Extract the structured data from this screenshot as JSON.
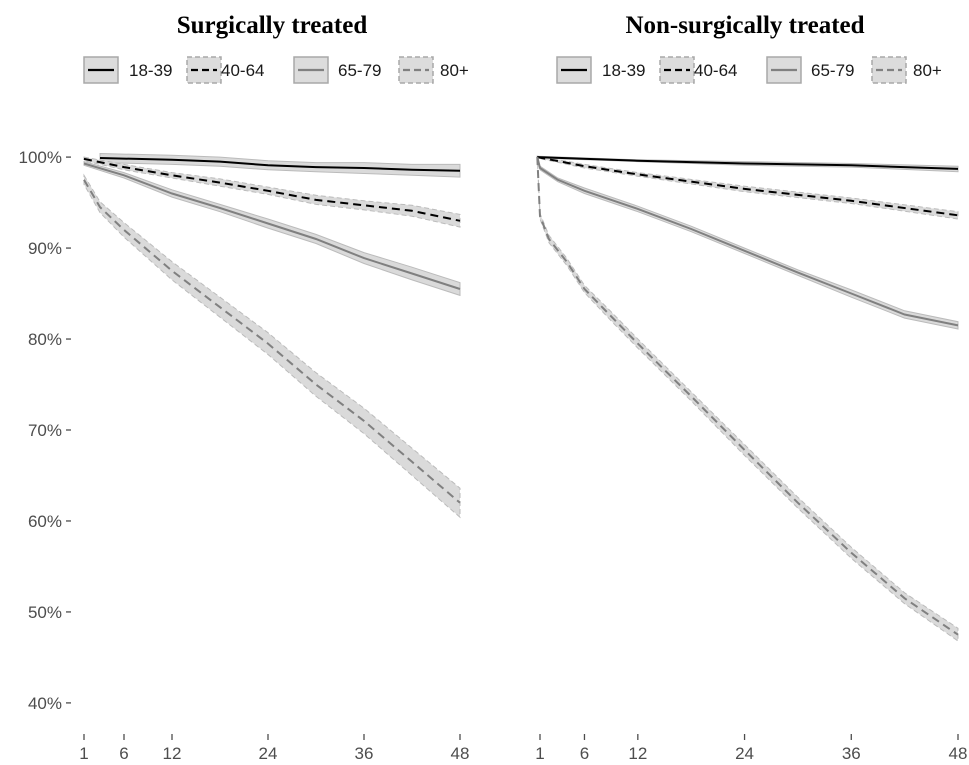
{
  "chart_data": [
    {
      "type": "line",
      "title": "Surgically treated",
      "xlabel": "",
      "ylabel": "",
      "x_ticks": [
        1,
        6,
        12,
        24,
        36,
        48
      ],
      "y_ticks": [
        "40%",
        "50%",
        "60%",
        "70%",
        "80%",
        "90%",
        "100%"
      ],
      "xlim": [
        1,
        48
      ],
      "ylim": [
        0.39,
        1.01
      ],
      "grid": false,
      "legend_position": "top",
      "series": [
        {
          "name": "18-39",
          "linetype": "solid",
          "color": "#000000",
          "fill": "#d9d9d9",
          "x": [
            3,
            12,
            18,
            24,
            30,
            36,
            42,
            48
          ],
          "y": [
            0.999,
            0.997,
            0.995,
            0.991,
            0.989,
            0.988,
            0.986,
            0.985
          ],
          "ci": [
            0.005,
            0.005,
            0.005,
            0.005,
            0.005,
            0.006,
            0.006,
            0.007
          ]
        },
        {
          "name": "40-64",
          "linetype": "dashed",
          "color": "#000000",
          "fill": "#d9d9d9",
          "x": [
            1,
            6,
            12,
            18,
            24,
            30,
            36,
            42,
            48
          ],
          "y": [
            0.998,
            0.989,
            0.98,
            0.972,
            0.963,
            0.953,
            0.947,
            0.941,
            0.93
          ],
          "ci": [
            0.002,
            0.003,
            0.003,
            0.004,
            0.004,
            0.005,
            0.005,
            0.006,
            0.007
          ]
        },
        {
          "name": "65-79",
          "linetype": "solid",
          "color": "#808080",
          "fill": "#d9d9d9",
          "x": [
            1,
            6,
            12,
            18,
            24,
            30,
            36,
            42,
            48
          ],
          "y": [
            0.993,
            0.98,
            0.96,
            0.944,
            0.927,
            0.91,
            0.889,
            0.872,
            0.855
          ],
          "ci": [
            0.002,
            0.003,
            0.004,
            0.004,
            0.005,
            0.005,
            0.006,
            0.007,
            0.007
          ]
        },
        {
          "name": "80+",
          "linetype": "dashed",
          "color": "#808080",
          "fill": "#d9d9d9",
          "x": [
            1,
            3,
            6,
            12,
            18,
            24,
            30,
            36,
            42,
            48
          ],
          "y": [
            0.975,
            0.945,
            0.92,
            0.875,
            0.835,
            0.795,
            0.75,
            0.71,
            0.665,
            0.62
          ],
          "ci": [
            0.005,
            0.006,
            0.008,
            0.01,
            0.011,
            0.012,
            0.013,
            0.014,
            0.015,
            0.016
          ]
        }
      ]
    },
    {
      "type": "line",
      "title": "Non-surgically treated",
      "xlabel": "",
      "ylabel": "",
      "x_ticks": [
        1,
        6,
        12,
        24,
        36,
        48
      ],
      "xlim": [
        1,
        48
      ],
      "ylim": [
        0.39,
        1.01
      ],
      "grid": false,
      "legend_position": "top",
      "series": [
        {
          "name": "18-39",
          "linetype": "solid",
          "color": "#000000",
          "fill": "#d9d9d9",
          "x": [
            0,
            12,
            24,
            36,
            48
          ],
          "y": [
            1.0,
            0.996,
            0.993,
            0.991,
            0.987
          ],
          "ci": [
            0.001,
            0.001,
            0.002,
            0.002,
            0.003
          ]
        },
        {
          "name": "40-64",
          "linetype": "dashed",
          "color": "#000000",
          "fill": "#d9d9d9",
          "x": [
            0,
            6,
            12,
            24,
            36,
            48
          ],
          "y": [
            1.0,
            0.99,
            0.981,
            0.965,
            0.952,
            0.936
          ],
          "ci": [
            0.001,
            0.002,
            0.002,
            0.003,
            0.003,
            0.004
          ]
        },
        {
          "name": "65-79",
          "linetype": "solid",
          "color": "#808080",
          "fill": "#d9d9d9",
          "x": [
            0,
            1,
            3,
            6,
            12,
            18,
            24,
            30,
            36,
            42,
            48
          ],
          "y": [
            1.0,
            0.988,
            0.975,
            0.963,
            0.943,
            0.921,
            0.897,
            0.873,
            0.85,
            0.827,
            0.815
          ],
          "ci": [
            0.001,
            0.002,
            0.002,
            0.003,
            0.003,
            0.003,
            0.003,
            0.003,
            0.004,
            0.004,
            0.004
          ]
        },
        {
          "name": "80+",
          "linetype": "dashed",
          "color": "#808080",
          "fill": "#d9d9d9",
          "x": [
            0,
            1,
            2,
            4,
            6,
            9,
            12,
            18,
            24,
            30,
            36,
            42,
            48
          ],
          "y": [
            1.0,
            0.935,
            0.91,
            0.885,
            0.855,
            0.825,
            0.795,
            0.737,
            0.678,
            0.62,
            0.565,
            0.515,
            0.475
          ],
          "ci": [
            0.001,
            0.003,
            0.004,
            0.004,
            0.004,
            0.005,
            0.005,
            0.005,
            0.006,
            0.006,
            0.006,
            0.006,
            0.007
          ]
        }
      ]
    }
  ]
}
